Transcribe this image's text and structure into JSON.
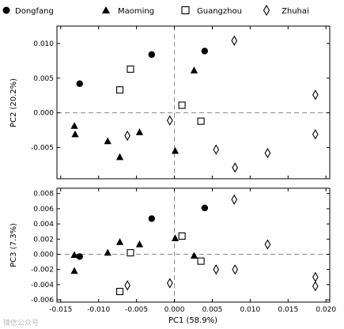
{
  "chart_data": [
    {
      "type": "scatter",
      "ylabel": "PC2 (20.2%)",
      "xlim": [
        -0.0155,
        0.0205
      ],
      "ylim": [
        -0.0095,
        0.0125
      ],
      "xticks": [],
      "yticks": [
        "0.010",
        "0.005",
        "0.000",
        "-0.005"
      ],
      "ytick_values": [
        0.01,
        0.005,
        0.0,
        -0.005
      ],
      "reference_lines": {
        "x": 0,
        "y": 0
      },
      "legend": {
        "placement": "top",
        "entries": [
          "Dongfang",
          "Maoming",
          "Guangzhou",
          "Zhuhai"
        ]
      },
      "series": [
        {
          "name": "Dongfang",
          "marker": "filled-circle",
          "points": [
            [
              -0.0125,
              0.0042
            ],
            [
              -0.003,
              0.0084
            ],
            [
              0.004,
              0.0089
            ]
          ]
        },
        {
          "name": "Maoming",
          "marker": "filled-triangle",
          "points": [
            [
              -0.0132,
              -0.0019
            ],
            [
              -0.0131,
              -0.0031
            ],
            [
              -0.0088,
              -0.0041
            ],
            [
              -0.0072,
              -0.0064
            ],
            [
              -0.0046,
              -0.0028
            ],
            [
              0.0001,
              -0.0055
            ],
            [
              0.0026,
              0.0061
            ]
          ]
        },
        {
          "name": "Guangzhou",
          "marker": "open-square",
          "points": [
            [
              -0.0072,
              0.0033
            ],
            [
              -0.0058,
              0.0063
            ],
            [
              0.001,
              0.0011
            ],
            [
              0.0035,
              -0.0012
            ]
          ]
        },
        {
          "name": "Zhuhai",
          "marker": "open-diamond",
          "points": [
            [
              -0.0062,
              -0.0033
            ],
            [
              -0.0006,
              -0.0011
            ],
            [
              0.0055,
              -0.0053
            ],
            [
              0.0079,
              0.0104
            ],
            [
              0.008,
              -0.0079
            ],
            [
              0.0123,
              -0.0058
            ],
            [
              0.0186,
              0.0026
            ],
            [
              0.0186,
              -0.0031
            ]
          ]
        }
      ]
    },
    {
      "type": "scatter",
      "xlabel": "PC1 (58.9%)",
      "ylabel": "PC3 (7.3%)",
      "xlim": [
        -0.0155,
        0.0205
      ],
      "ylim": [
        -0.0063,
        0.0087
      ],
      "xticks": [
        "-0.015",
        "-0.010",
        "-0.005",
        "0.000",
        "0.005",
        "0.010",
        "0.015",
        "0.020"
      ],
      "xtick_values": [
        -0.015,
        -0.01,
        -0.005,
        0.0,
        0.005,
        0.01,
        0.015,
        0.02
      ],
      "yticks": [
        "0.008",
        "0.006",
        "0.004",
        "0.002",
        "0.000",
        "-0.002",
        "-0.004",
        "-0.006"
      ],
      "ytick_values": [
        0.008,
        0.006,
        0.004,
        0.002,
        0.0,
        -0.002,
        -0.004,
        -0.006
      ],
      "reference_lines": {
        "x": 0,
        "y": 0
      },
      "series": [
        {
          "name": "Dongfang",
          "marker": "filled-circle",
          "points": [
            [
              -0.0125,
              -0.0003
            ],
            [
              -0.003,
              0.0047
            ],
            [
              0.004,
              0.0061
            ]
          ]
        },
        {
          "name": "Maoming",
          "marker": "filled-triangle",
          "points": [
            [
              -0.0132,
              -0.0001
            ],
            [
              -0.0132,
              -0.0022
            ],
            [
              -0.0088,
              0.0002
            ],
            [
              -0.0072,
              0.0016
            ],
            [
              -0.0046,
              0.0013
            ],
            [
              0.0001,
              0.0021
            ],
            [
              0.0026,
              -0.0002
            ]
          ]
        },
        {
          "name": "Guangzhou",
          "marker": "open-square",
          "points": [
            [
              -0.0072,
              -0.0049
            ],
            [
              -0.0058,
              0.0002
            ],
            [
              0.001,
              0.0024
            ],
            [
              0.0035,
              -0.0009
            ]
          ]
        },
        {
          "name": "Zhuhai",
          "marker": "open-diamond",
          "points": [
            [
              -0.0062,
              -0.0041
            ],
            [
              -0.0006,
              -0.0038
            ],
            [
              0.0055,
              -0.002
            ],
            [
              0.0079,
              0.0072
            ],
            [
              0.008,
              -0.002
            ],
            [
              0.0123,
              0.0013
            ],
            [
              0.0186,
              -0.003
            ],
            [
              0.0186,
              -0.0042
            ]
          ]
        }
      ]
    }
  ],
  "watermark": "微信公众号"
}
